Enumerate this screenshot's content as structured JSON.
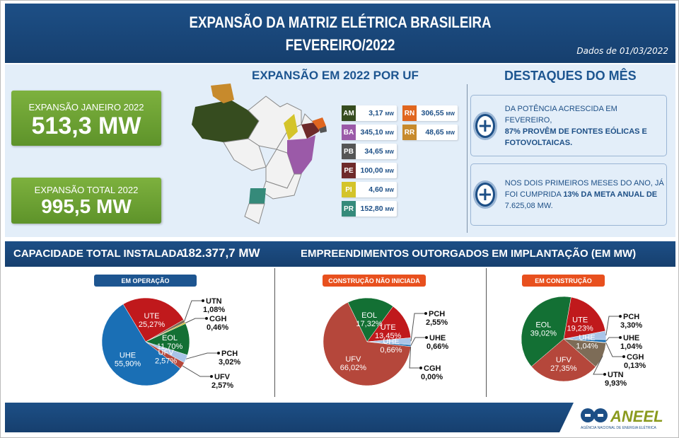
{
  "header": {
    "title_line1": "EXPANSÃO DA MATRIZ ELÉTRICA BRASILEIRA",
    "title_line2": "FEVEREIRO/2022",
    "date": "Dados de 01/03/2022"
  },
  "left": {
    "jan_label": "EXPANSÃO JANEIRO 2022",
    "jan_value": "513,3 MW",
    "total_label": "EXPANSÃO TOTAL 2022",
    "total_value": "995,5 MW"
  },
  "uf": {
    "title": "EXPANSÃO EM 2022 POR UF",
    "unit": "MW",
    "items": [
      {
        "code": "AM",
        "value": "3,17",
        "color": "#364c1f"
      },
      {
        "code": "BA",
        "value": "345,10",
        "color": "#9b5aa8"
      },
      {
        "code": "PB",
        "value": "34,65",
        "color": "#555555"
      },
      {
        "code": "PE",
        "value": "100,00",
        "color": "#6e2a2a"
      },
      {
        "code": "PI",
        "value": "4,60",
        "color": "#d4c42a"
      },
      {
        "code": "PR",
        "value": "152,80",
        "color": "#358a7a"
      },
      {
        "code": "RN",
        "value": "306,55",
        "color": "#e0661f"
      },
      {
        "code": "RR",
        "value": "48,65",
        "color": "#c78a2c"
      }
    ]
  },
  "destaques": {
    "title": "DESTAQUES DO MÊS",
    "box1": {
      "text": "DA POTÊNCIA ACRESCIDA EM FEVEREIRO,",
      "bold": "87% PROVÊM DE FONTES EÓLICAS E FOTOVOLTAICAS."
    },
    "box2": {
      "text": "NOS DOIS PRIMEIROS MESES DO ANO, JÁ FOI CUMPRIDA",
      "bold": "13% DA META ANUAL DE",
      "tail": "7.625,08 MW."
    }
  },
  "band": {
    "capacity_label": "CAPACIDADE TOTAL INSTALADA",
    "capacity_value": "182.377,7 MW",
    "outorgados": "EMPREENDIMENTOS OUTORGADOS EM IMPLANTAÇÃO (EM MW)"
  },
  "colors": {
    "UHE": "#1a6fb5",
    "UTE": "#c0191c",
    "EOL": "#137034",
    "PCH": "#a9c4e8",
    "UFV": "#b5473b",
    "UTN": "#7d6c57",
    "CGH": "#c8b400",
    "header": "#1d4f86",
    "green": "#6ea436",
    "orange": "#e8501e"
  },
  "chart_data": [
    {
      "type": "pie",
      "title": "EM OPERAÇÃO",
      "slices": [
        {
          "name": "UTE",
          "value": 25.27,
          "label": "25,27%"
        },
        {
          "name": "UTN",
          "value": 1.08,
          "label": "1,08%"
        },
        {
          "name": "CGH",
          "value": 0.46,
          "label": "0,46%"
        },
        {
          "name": "EOL",
          "value": 11.7,
          "label": "11,70%"
        },
        {
          "name": "PCH",
          "value": 3.02,
          "label": "3,02%"
        },
        {
          "name": "UFV",
          "value": 2.57,
          "label": "2,57%"
        },
        {
          "name": "UHE",
          "value": 55.9,
          "label": "55,90%"
        }
      ]
    },
    {
      "type": "pie",
      "title": "CONSTRUÇÃO NÃO INICIADA",
      "slices": [
        {
          "name": "EOL",
          "value": 17.32,
          "label": "17,32%"
        },
        {
          "name": "UTE",
          "value": 13.45,
          "label": "13,45%"
        },
        {
          "name": "PCH",
          "value": 2.55,
          "label": "2,55%"
        },
        {
          "name": "UHE",
          "value": 0.66,
          "label": "0,66%"
        },
        {
          "name": "CGH",
          "value": 0.0,
          "label": "0,00%"
        },
        {
          "name": "UFV",
          "value": 66.02,
          "label": "66,02%"
        }
      ]
    },
    {
      "type": "pie",
      "title": "EM CONSTRUÇÃO",
      "slices": [
        {
          "name": "UTE",
          "value": 19.23,
          "label": "19,23%"
        },
        {
          "name": "PCH",
          "value": 3.3,
          "label": "3,30%"
        },
        {
          "name": "UHE",
          "value": 1.04,
          "label": "1,04%"
        },
        {
          "name": "CGH",
          "value": 0.13,
          "label": "0,13%"
        },
        {
          "name": "UTN",
          "value": 9.93,
          "label": "9,93%"
        },
        {
          "name": "UFV",
          "value": 27.35,
          "label": "27,35%"
        },
        {
          "name": "EOL",
          "value": 39.02,
          "label": "39,02%"
        }
      ]
    }
  ],
  "logo": {
    "name": "ANEEL",
    "subtitle": "Agência Nacional de Energia Elétrica"
  }
}
